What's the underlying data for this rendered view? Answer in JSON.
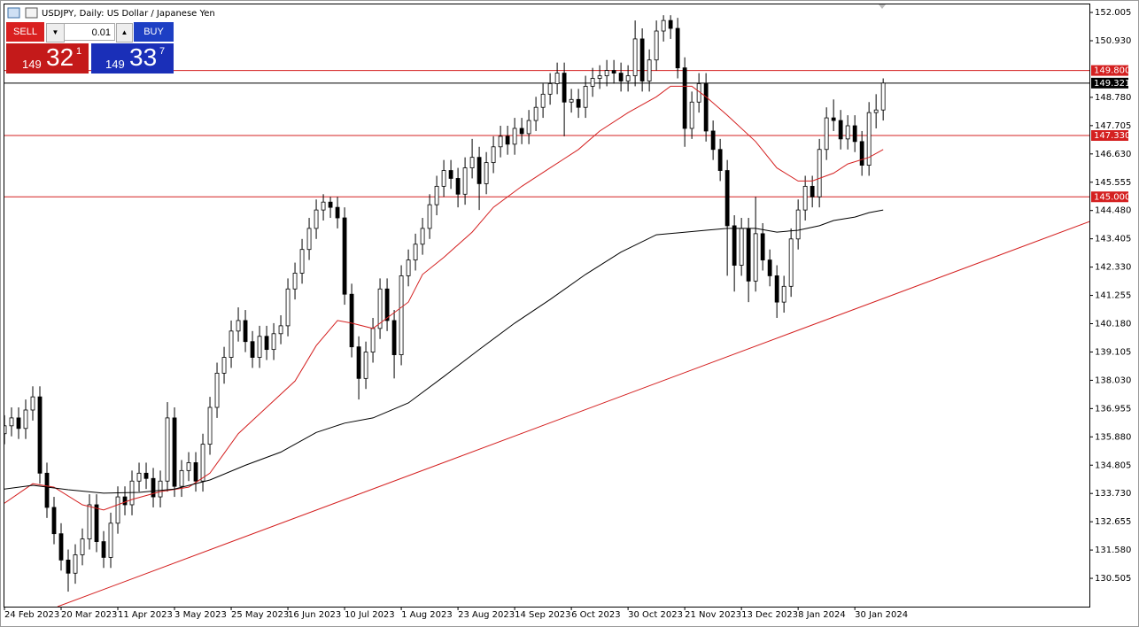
{
  "chart_data": {
    "type": "candlestick",
    "title": "USDJPY, Daily:  US Dollar / Japanese Yen",
    "x": [
      0,
      1,
      2,
      3,
      4,
      5,
      6,
      7,
      8,
      9,
      10,
      11,
      12,
      13,
      14,
      15,
      16,
      17,
      18,
      19,
      20,
      21,
      22,
      23,
      24,
      25,
      26,
      27,
      28,
      29,
      30,
      31,
      32,
      33,
      34,
      35,
      36,
      37,
      38,
      39,
      40,
      41,
      42,
      43,
      44,
      45,
      46,
      47,
      48,
      49,
      50,
      51,
      52,
      53,
      54,
      55,
      56,
      57,
      58,
      59,
      60,
      61,
      62,
      63,
      64,
      65,
      66,
      67,
      68,
      69,
      70,
      71,
      72,
      73,
      74,
      75,
      76,
      77,
      78,
      79,
      80,
      81,
      82,
      83,
      84,
      85,
      86,
      87,
      88,
      89,
      90,
      91,
      92,
      93,
      94,
      95,
      96,
      97,
      98,
      99,
      100,
      101,
      102,
      103,
      104,
      105,
      106,
      107,
      108,
      109,
      110,
      111,
      112,
      113,
      114,
      115,
      116,
      117,
      118,
      119,
      120,
      121,
      122,
      123,
      124
    ],
    "open": [
      136.0,
      136.3,
      136.6,
      136.2,
      136.9,
      137.4,
      134.5,
      133.2,
      132.2,
      131.2,
      130.7,
      131.4,
      132.0,
      133.3,
      131.9,
      131.3,
      132.6,
      133.6,
      133.3,
      134.2,
      134.5,
      134.3,
      133.6,
      134.2,
      136.6,
      134.0,
      134.6,
      134.9,
      134.2,
      135.6,
      137.0,
      138.3,
      138.9,
      139.9,
      140.3,
      139.5,
      138.9,
      139.7,
      139.2,
      139.8,
      140.1,
      141.5,
      142.1,
      143.0,
      143.8,
      144.5,
      144.8,
      144.6,
      144.2,
      141.3,
      139.3,
      138.1,
      139.1,
      140.0,
      141.5,
      140.3,
      139.0,
      142.0,
      142.6,
      143.2,
      143.8,
      144.7,
      145.4,
      146.0,
      145.7,
      145.1,
      146.1,
      146.5,
      145.5,
      146.3,
      146.9,
      147.3,
      147.0,
      147.6,
      147.4,
      147.9,
      148.4,
      148.9,
      149.3,
      149.7,
      148.6,
      148.7,
      148.4,
      149.2,
      149.5,
      149.6,
      149.8,
      149.7,
      149.4,
      149.6,
      151.0,
      149.4,
      150.2,
      151.3,
      151.7,
      151.4,
      149.9,
      147.6,
      148.6,
      149.3,
      147.5,
      146.8,
      146.0,
      143.9,
      142.4,
      143.8,
      141.8,
      143.6,
      142.6,
      142.0,
      141.0,
      141.6,
      143.4,
      144.5,
      145.4,
      145.0,
      146.8,
      148.0,
      147.9,
      147.2,
      147.7,
      147.1,
      146.2,
      148.2,
      148.3
    ],
    "high": [
      136.7,
      137.0,
      137.0,
      137.3,
      137.8,
      137.8,
      134.9,
      133.6,
      132.6,
      131.6,
      131.8,
      132.4,
      133.7,
      133.7,
      132.3,
      133.0,
      134.0,
      134.0,
      134.6,
      134.9,
      134.9,
      134.7,
      134.6,
      137.2,
      137.0,
      135.0,
      135.3,
      135.3,
      136.0,
      137.4,
      138.7,
      139.3,
      140.3,
      140.8,
      140.7,
      139.9,
      140.1,
      140.1,
      140.2,
      140.5,
      141.9,
      142.5,
      143.4,
      144.2,
      144.9,
      145.1,
      145.0,
      145.0,
      144.6,
      141.7,
      139.7,
      139.5,
      140.4,
      141.9,
      141.9,
      140.7,
      142.4,
      143.0,
      143.6,
      144.2,
      145.1,
      145.8,
      146.4,
      146.4,
      146.1,
      146.5,
      147.2,
      146.9,
      146.7,
      147.3,
      147.7,
      147.7,
      148.0,
      148.0,
      148.3,
      148.8,
      149.3,
      149.7,
      150.1,
      150.1,
      149.1,
      149.1,
      149.6,
      149.9,
      150.0,
      150.2,
      150.2,
      150.1,
      150.0,
      151.7,
      151.4,
      150.6,
      151.7,
      151.9,
      151.9,
      151.8,
      150.3,
      149.0,
      149.7,
      149.7,
      147.9,
      147.2,
      146.4,
      144.3,
      144.2,
      144.2,
      145.0,
      144.0,
      143.0,
      142.4,
      142.0,
      143.8,
      144.9,
      145.8,
      145.8,
      147.2,
      148.4,
      148.7,
      148.3,
      148.1,
      148.1,
      147.5,
      148.6,
      148.9,
      149.5
    ],
    "low": [
      135.6,
      135.9,
      135.8,
      135.8,
      136.5,
      134.1,
      132.8,
      131.8,
      130.8,
      130.0,
      130.3,
      131.0,
      131.6,
      131.5,
      130.9,
      130.9,
      132.2,
      132.9,
      132.9,
      133.8,
      133.9,
      133.2,
      133.2,
      133.8,
      133.6,
      133.6,
      134.2,
      133.8,
      133.8,
      135.2,
      136.6,
      137.9,
      138.5,
      139.5,
      139.1,
      138.5,
      138.5,
      138.8,
      138.8,
      139.4,
      139.7,
      141.1,
      141.7,
      142.6,
      143.4,
      144.1,
      144.2,
      143.8,
      140.9,
      138.9,
      137.3,
      137.7,
      138.7,
      139.6,
      139.9,
      138.1,
      138.6,
      141.6,
      142.2,
      142.8,
      143.4,
      144.3,
      145.0,
      145.3,
      144.6,
      144.7,
      145.7,
      144.5,
      145.1,
      145.9,
      146.5,
      146.6,
      146.6,
      147.0,
      147.0,
      147.5,
      148.0,
      148.5,
      148.9,
      147.3,
      148.2,
      148.0,
      148.0,
      148.8,
      149.1,
      149.2,
      149.3,
      149.0,
      149.0,
      149.2,
      149.0,
      149.0,
      149.8,
      150.9,
      151.0,
      149.5,
      146.9,
      147.2,
      148.2,
      147.1,
      146.4,
      145.6,
      142.0,
      141.4,
      142.0,
      141.0,
      141.4,
      142.2,
      141.6,
      140.4,
      140.6,
      141.2,
      143.0,
      144.1,
      144.6,
      144.6,
      146.4,
      147.5,
      146.8,
      146.8,
      146.7,
      145.8,
      145.8,
      147.6,
      147.9
    ],
    "close": [
      136.3,
      136.6,
      136.2,
      136.9,
      137.4,
      134.5,
      133.2,
      132.2,
      131.2,
      130.7,
      131.4,
      132.0,
      133.3,
      131.9,
      131.3,
      132.6,
      133.6,
      133.3,
      134.2,
      134.5,
      134.3,
      133.6,
      134.2,
      136.6,
      134.0,
      134.6,
      134.9,
      134.2,
      135.6,
      137.0,
      138.3,
      138.9,
      139.9,
      140.3,
      139.5,
      138.9,
      139.7,
      139.2,
      139.8,
      140.1,
      141.5,
      142.1,
      143.0,
      143.8,
      144.5,
      144.8,
      144.6,
      144.2,
      141.3,
      139.3,
      138.1,
      139.1,
      140.0,
      141.5,
      140.3,
      139.0,
      142.0,
      142.6,
      143.2,
      143.8,
      144.7,
      145.4,
      146.0,
      145.7,
      145.1,
      146.1,
      146.5,
      145.5,
      146.3,
      146.9,
      147.3,
      147.0,
      147.6,
      147.4,
      147.9,
      148.4,
      148.9,
      149.3,
      149.7,
      148.6,
      148.7,
      148.4,
      149.2,
      149.5,
      149.6,
      149.8,
      149.7,
      149.4,
      149.6,
      151.0,
      149.4,
      150.2,
      151.3,
      151.7,
      151.4,
      149.9,
      147.6,
      148.6,
      149.3,
      147.5,
      146.8,
      146.0,
      143.9,
      142.4,
      143.8,
      141.8,
      143.6,
      142.6,
      142.0,
      141.0,
      141.6,
      143.4,
      144.5,
      145.4,
      145.0,
      146.8,
      148.0,
      147.9,
      147.2,
      147.7,
      147.1,
      146.2,
      148.2,
      148.3,
      149.321
    ],
    "up_fill": "#ffffff",
    "down_fill": "#000000",
    "candle_stroke": "#000000",
    "xlim": [
      0,
      153.1
    ],
    "ylim": [
      129.43,
      152.31
    ],
    "xticks": [
      {
        "value": 0,
        "label": "24 Feb 2023"
      },
      {
        "value": 8,
        "label": "20 Mar 2023"
      },
      {
        "value": 16,
        "label": "11 Apr 2023"
      },
      {
        "value": 24,
        "label": "3 May 2023"
      },
      {
        "value": 32,
        "label": "25 May 2023"
      },
      {
        "value": 40,
        "label": "16 Jun 2023"
      },
      {
        "value": 48,
        "label": "10 Jul 2023"
      },
      {
        "value": 56,
        "label": "1 Aug 2023"
      },
      {
        "value": 64,
        "label": "23 Aug 2023"
      },
      {
        "value": 72,
        "label": "14 Sep 2023"
      },
      {
        "value": 80,
        "label": "6 Oct 2023"
      },
      {
        "value": 88,
        "label": "30 Oct 2023"
      },
      {
        "value": 96,
        "label": "21 Nov 2023"
      },
      {
        "value": 104,
        "label": "13 Dec 2023"
      },
      {
        "value": 112,
        "label": "8 Jan 2024"
      },
      {
        "value": 120,
        "label": "30 Jan 2024"
      }
    ],
    "yticks": [
      152.005,
      {
        "value": 150.93,
        "label": "150.930"
      },
      {
        "value": 148.78,
        "label": "148.780"
      },
      147.705,
      {
        "value": 146.63,
        "label": "146.630"
      },
      145.555,
      {
        "value": 144.48,
        "label": "144.480"
      },
      143.405,
      {
        "value": 142.33,
        "label": "142.330"
      },
      141.255,
      {
        "value": 140.18,
        "label": "140.180"
      },
      139.105,
      {
        "value": 138.03,
        "label": "138.030"
      },
      136.955,
      {
        "value": 135.88,
        "label": "135.880"
      },
      134.805,
      {
        "value": 133.73,
        "label": "133.730"
      },
      132.655,
      {
        "value": 131.58,
        "label": "131.580"
      },
      130.505
    ],
    "grid": false,
    "moving_averages": [
      {
        "color": "#d42020",
        "x": [
          0,
          4,
          7,
          11,
          14,
          18,
          22,
          26,
          29,
          33,
          37,
          41,
          44,
          47,
          49,
          52,
          54,
          57,
          59,
          62,
          66,
          69,
          73,
          77,
          81,
          84,
          88,
          92,
          94,
          97,
          99,
          102,
          106,
          109,
          112,
          114,
          117,
          119,
          122,
          124
        ],
        "values": [
          133.36,
          134.1,
          133.97,
          133.3,
          133.1,
          133.5,
          133.8,
          133.97,
          134.5,
          136.0,
          137.0,
          138.0,
          139.35,
          140.3,
          140.2,
          140.0,
          140.4,
          141.0,
          142.05,
          142.7,
          143.66,
          144.6,
          145.4,
          146.1,
          146.8,
          147.5,
          148.2,
          148.8,
          149.2,
          149.2,
          148.8,
          148.1,
          147.1,
          146.1,
          145.6,
          145.6,
          145.9,
          146.25,
          146.5,
          146.8
        ]
      },
      {
        "color": "#000000",
        "x": [
          0,
          4,
          9,
          14,
          19,
          24,
          29,
          34,
          39,
          44,
          48,
          52,
          57,
          62,
          67,
          72,
          77,
          82,
          87,
          92,
          99,
          102,
          106,
          109,
          112,
          115,
          117,
          120,
          122,
          124
        ],
        "values": [
          133.9,
          134.04,
          133.87,
          133.74,
          133.77,
          133.9,
          134.24,
          134.8,
          135.3,
          136.05,
          136.4,
          136.6,
          137.17,
          138.17,
          139.2,
          140.2,
          141.1,
          142.05,
          142.9,
          143.56,
          143.73,
          143.8,
          143.8,
          143.66,
          143.73,
          143.9,
          144.1,
          144.23,
          144.4,
          144.5
        ]
      }
    ],
    "levels": [
      {
        "value": 149.8,
        "label": "149.800",
        "color": "#d42020"
      },
      {
        "value": 149.321,
        "label": "149.321",
        "color": "#000000"
      },
      {
        "value": 147.33,
        "label": "147.330",
        "color": "#d42020"
      },
      {
        "value": 145.0,
        "label": "145.000",
        "color": "#d42020"
      }
    ],
    "trendline": {
      "color": "#d42020",
      "x": [
        7.5,
        153.1
      ],
      "y": [
        129.43,
        144.06
      ]
    }
  },
  "trade_panel": {
    "sell": "SELL",
    "buy": "BUY",
    "lot": "0.01",
    "bid": {
      "big_figure": "149",
      "pips": "32",
      "fraction": "1"
    },
    "ask": {
      "big_figure": "149",
      "pips": "33",
      "fraction": "7"
    }
  }
}
